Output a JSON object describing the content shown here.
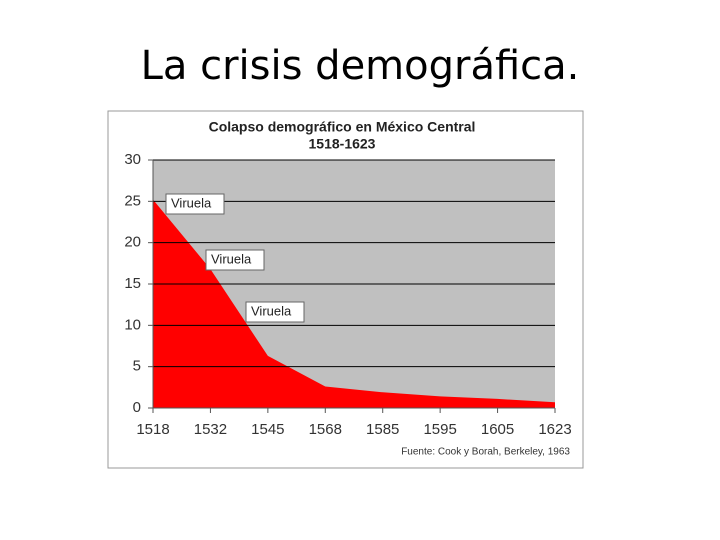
{
  "slide_title": "La crisis demográfica.",
  "chart_data": {
    "type": "area",
    "title": "Colapso demográfico en México Central",
    "subtitle": "1518-1623",
    "categories": [
      "1518",
      "1532",
      "1545",
      "1568",
      "1585",
      "1595",
      "1605",
      "1623"
    ],
    "values": [
      25.2,
      16.8,
      6.3,
      2.6,
      1.9,
      1.4,
      1.1,
      0.7
    ],
    "color": "#ff0000",
    "ylim": [
      0,
      30
    ],
    "yticks": [
      0,
      5,
      10,
      15,
      20,
      25,
      30
    ],
    "grid": true,
    "annotations": [
      "Viruela",
      "Viruela",
      "Viruela"
    ],
    "source": "Fuente: Cook y Borah, Berkeley, 1963"
  }
}
